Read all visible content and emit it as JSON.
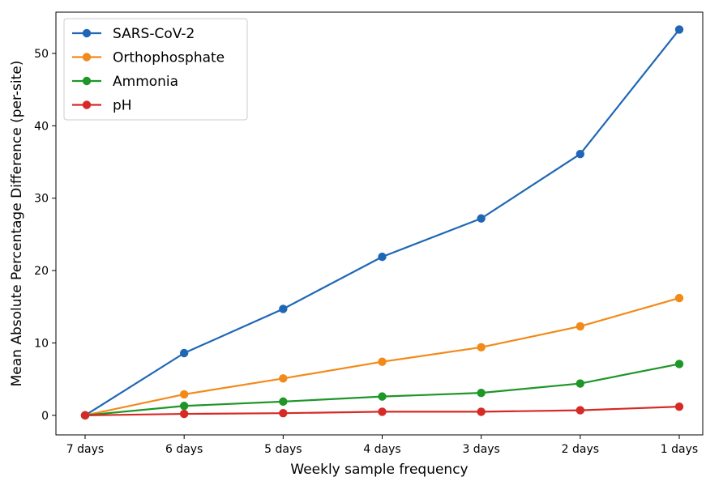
{
  "chart_data": {
    "type": "line",
    "title": "",
    "xlabel": "Weekly sample frequency",
    "ylabel": "Mean Absolute Percentage Difference (per-site)",
    "categories": [
      "7 days",
      "6 days",
      "5 days",
      "4 days",
      "3 days",
      "2 days",
      "1 days"
    ],
    "ylim": [
      -2.7,
      55.7
    ],
    "yticks": [
      0,
      10,
      20,
      30,
      40,
      50
    ],
    "grid": false,
    "legend_position": "top-left",
    "series": [
      {
        "name": "SARS-CoV-2",
        "color": "#1f67b5",
        "values": [
          0,
          8.6,
          14.7,
          21.9,
          27.2,
          36.1,
          53.3
        ]
      },
      {
        "name": "Orthophosphate",
        "color": "#f28a1a",
        "values": [
          0,
          2.9,
          5.1,
          7.4,
          9.4,
          12.3,
          16.2
        ]
      },
      {
        "name": "Ammonia",
        "color": "#1e9628",
        "values": [
          0,
          1.3,
          1.9,
          2.6,
          3.1,
          4.4,
          7.1
        ]
      },
      {
        "name": "pH",
        "color": "#d62a26",
        "values": [
          0,
          0.2,
          0.3,
          0.5,
          0.5,
          0.7,
          1.2
        ]
      }
    ]
  }
}
